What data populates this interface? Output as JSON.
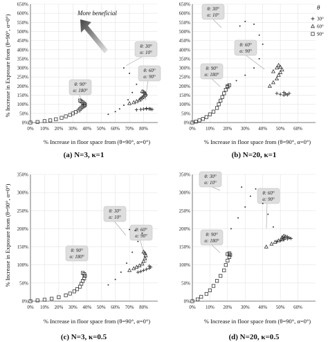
{
  "figure": {
    "x_axis_label": "% Increase in floor space from (θ=90°, α=0°)",
    "y_axis_label": "% Increase in Exposure from (θ=90°, α=0°)",
    "arrow_text": "More beneficial",
    "legend": {
      "title": "θ",
      "entries": [
        {
          "symbol": "plus",
          "label": "30°"
        },
        {
          "symbol": "triangle",
          "label": "60°"
        },
        {
          "symbol": "square",
          "label": "90°"
        }
      ]
    },
    "colors": {
      "marker": "#333333",
      "axis": "#555555",
      "grid": "#e3e3e3",
      "callout_bg": "#dedede"
    }
  },
  "chart_data": [
    {
      "type": "scatter",
      "caption": {
        "letter": "(a)",
        "text": "N=3, κ=1"
      },
      "xlim": [
        0,
        90
      ],
      "ylim": [
        0,
        650
      ],
      "x_ticks": [
        "0%",
        "10%",
        "20%",
        "30%",
        "40%",
        "50%",
        "60%",
        "70%",
        "80%"
      ],
      "y_ticks": [
        "0%",
        "50%",
        "100%",
        "150%",
        "200%",
        "250%",
        "300%",
        "350%",
        "400%",
        "450%",
        "500%",
        "550%",
        "600%",
        "650%"
      ],
      "annotations": [
        {
          "theta": "θ: 30°",
          "alpha": "α: 10°"
        },
        {
          "theta": "θ: 60°",
          "alpha": "α: 90°"
        },
        {
          "theta": "θ: 90°",
          "alpha": "α: 180°"
        }
      ],
      "series": [
        {
          "marker": "square",
          "points": [
            [
              0,
              0
            ],
            [
              5,
              3
            ],
            [
              10,
              8
            ],
            [
              14,
              12
            ],
            [
              18,
              18
            ],
            [
              22,
              26
            ],
            [
              25,
              34
            ],
            [
              28,
              42
            ],
            [
              30,
              50
            ],
            [
              32,
              58
            ],
            [
              34,
              66
            ],
            [
              35,
              74
            ],
            [
              36,
              82
            ],
            [
              37,
              88
            ],
            [
              38,
              92
            ],
            [
              38.5,
              98
            ],
            [
              38,
              104
            ],
            [
              37,
              110
            ],
            [
              36,
              116
            ],
            [
              35,
              121
            ]
          ]
        },
        {
          "marker": "triangle",
          "points": [
            [
              70,
              105
            ],
            [
              73,
              110
            ],
            [
              75,
              116
            ],
            [
              77,
              124
            ],
            [
              78,
              131
            ],
            [
              79,
              137
            ],
            [
              80,
              143
            ],
            [
              81,
              150
            ],
            [
              81.5,
              156
            ],
            [
              81,
              162
            ],
            [
              80,
              168
            ],
            [
              79,
              171
            ]
          ]
        },
        {
          "marker": "plus",
          "points": [
            [
              75,
              70
            ],
            [
              78,
              72
            ],
            [
              80,
              74
            ],
            [
              82,
              75
            ],
            [
              84,
              75
            ],
            [
              85,
              74
            ],
            [
              86,
              72
            ],
            [
              84,
              76
            ],
            [
              82,
              78
            ]
          ]
        },
        {
          "marker": "dot",
          "points": [
            [
              55,
              45
            ],
            [
              60,
              60
            ],
            [
              63,
              75
            ],
            [
              66,
              95
            ],
            [
              69,
              125
            ],
            [
              72,
              165
            ],
            [
              75,
              210
            ],
            [
              70,
              270
            ],
            [
              66,
              300
            ]
          ]
        }
      ]
    },
    {
      "type": "scatter",
      "caption": {
        "letter": "(b)",
        "text": "N=20, κ=1"
      },
      "xlim": [
        0,
        70
      ],
      "ylim": [
        0,
        650
      ],
      "x_ticks": [
        "0%",
        "10%",
        "20%",
        "30%",
        "40%",
        "50%",
        "60%"
      ],
      "y_ticks": [
        "0%",
        "50%",
        "100%",
        "150%",
        "200%",
        "250%",
        "300%",
        "350%",
        "400%",
        "450%",
        "500%",
        "550%",
        "600%",
        "650%"
      ],
      "annotations": [
        {
          "theta": "θ: 30°",
          "alpha": "α: 10°"
        },
        {
          "theta": "θ: 60°",
          "alpha": "α: 90°"
        },
        {
          "theta": "θ: 90°",
          "alpha": "α: 180°"
        }
      ],
      "series": [
        {
          "marker": "square",
          "points": [
            [
              0,
              0
            ],
            [
              2,
              5
            ],
            [
              4,
              12
            ],
            [
              6,
              20
            ],
            [
              8,
              30
            ],
            [
              10,
              45
            ],
            [
              12,
              60
            ],
            [
              14,
              80
            ],
            [
              15,
              100
            ],
            [
              16,
              120
            ],
            [
              17,
              140
            ],
            [
              18,
              160
            ],
            [
              19,
              180
            ],
            [
              20,
              195
            ],
            [
              21,
              205
            ],
            [
              20,
              200
            ]
          ]
        },
        {
          "marker": "triangle",
          "points": [
            [
              44,
              200
            ],
            [
              46,
              220
            ],
            [
              48,
              240
            ],
            [
              49,
              260
            ],
            [
              50,
              275
            ],
            [
              51,
              290
            ],
            [
              50,
              305
            ],
            [
              49,
              315
            ],
            [
              48,
              300
            ],
            [
              46,
              280
            ]
          ]
        },
        {
          "marker": "plus",
          "points": [
            [
              48,
              160
            ],
            [
              50,
              155
            ],
            [
              52,
              150
            ],
            [
              53,
              158
            ],
            [
              54,
              152
            ],
            [
              55,
              160
            ],
            [
              52,
              165
            ]
          ]
        },
        {
          "marker": "dot",
          "points": [
            [
              25,
              230
            ],
            [
              30,
              260
            ],
            [
              35,
              300
            ],
            [
              38,
              350
            ],
            [
              40,
              430
            ],
            [
              38,
              480
            ],
            [
              35,
              540
            ],
            [
              30,
              555
            ],
            [
              27,
              530
            ]
          ]
        }
      ]
    },
    {
      "type": "scatter",
      "caption": {
        "letter": "(c)",
        "text": "N=3, κ=0.5"
      },
      "xlim": [
        0,
        90
      ],
      "ylim": [
        0,
        350
      ],
      "x_ticks": [
        "0%",
        "10%",
        "20%",
        "30%",
        "40%",
        "50%",
        "60%",
        "70%",
        "80%"
      ],
      "y_ticks": [
        "0%",
        "50%",
        "100%",
        "150%",
        "200%",
        "250%",
        "300%",
        "350%"
      ],
      "annotations": [
        {
          "theta": "θ: 30°",
          "alpha": "α: 10°"
        },
        {
          "theta": "θ: 60°",
          "alpha": "α: 90°"
        },
        {
          "theta": "θ: 90°",
          "alpha": "α: 180°"
        }
      ],
      "series": [
        {
          "marker": "square",
          "points": [
            [
              0,
              0
            ],
            [
              5,
              2
            ],
            [
              10,
              4
            ],
            [
              15,
              7
            ],
            [
              20,
              11
            ],
            [
              25,
              16
            ],
            [
              28,
              21
            ],
            [
              31,
              27
            ],
            [
              33,
              33
            ],
            [
              35,
              40
            ],
            [
              36,
              48
            ],
            [
              37,
              56
            ],
            [
              38,
              63
            ],
            [
              38.5,
              70
            ],
            [
              38,
              75
            ],
            [
              37,
              78
            ]
          ]
        },
        {
          "marker": "triangle",
          "points": [
            [
              70,
              85
            ],
            [
              73,
              90
            ],
            [
              75,
              94
            ],
            [
              77,
              98
            ],
            [
              79,
              103
            ],
            [
              80,
              110
            ],
            [
              81,
              118
            ],
            [
              81.5,
              126
            ],
            [
              81,
              132
            ],
            [
              80,
              136
            ]
          ]
        },
        {
          "marker": "plus",
          "points": [
            [
              76,
              80
            ],
            [
              78,
              82
            ],
            [
              80,
              85
            ],
            [
              82,
              88
            ],
            [
              84,
              91
            ],
            [
              85,
              94
            ],
            [
              84,
              97
            ]
          ]
        },
        {
          "marker": "dot",
          "points": [
            [
              55,
              45
            ],
            [
              60,
              60
            ],
            [
              64,
              80
            ],
            [
              68,
              105
            ],
            [
              72,
              135
            ],
            [
              76,
              165
            ],
            [
              79,
              188
            ],
            [
              74,
              195
            ],
            [
              70,
              198
            ]
          ]
        }
      ]
    },
    {
      "type": "scatter",
      "caption": {
        "letter": "(d)",
        "text": "N=20, κ=0.5"
      },
      "xlim": [
        0,
        70
      ],
      "ylim": [
        0,
        350
      ],
      "x_ticks": [
        "0%",
        "10%",
        "20%",
        "30%",
        "40%",
        "50%",
        "60%"
      ],
      "y_ticks": [
        "0%",
        "50%",
        "100%",
        "150%",
        "200%",
        "250%",
        "300%",
        "350%"
      ],
      "annotations": [
        {
          "theta": "θ: 30°",
          "alpha": "α: 10°"
        },
        {
          "theta": "θ: 60°",
          "alpha": "α: 90°"
        },
        {
          "theta": "θ: 90°",
          "alpha": "α: 180°"
        }
      ],
      "series": [
        {
          "marker": "square",
          "points": [
            [
              0,
              0
            ],
            [
              3,
              5
            ],
            [
              5,
              12
            ],
            [
              8,
              20
            ],
            [
              10,
              30
            ],
            [
              12,
              42
            ],
            [
              14,
              56
            ],
            [
              16,
              70
            ],
            [
              18,
              85
            ],
            [
              19,
              100
            ],
            [
              20,
              112
            ],
            [
              21,
              122
            ],
            [
              21.5,
              128
            ],
            [
              21,
              132
            ],
            [
              20,
              130
            ]
          ]
        },
        {
          "marker": "triangle",
          "points": [
            [
              42,
              150
            ],
            [
              45,
              158
            ],
            [
              47,
              163
            ],
            [
              49,
              167
            ],
            [
              51,
              170
            ],
            [
              52,
              174
            ],
            [
              53,
              178
            ],
            [
              52,
              180
            ],
            [
              51,
              176
            ]
          ]
        },
        {
          "marker": "plus",
          "points": [
            [
              48,
              165
            ],
            [
              50,
              168
            ],
            [
              52,
              170
            ],
            [
              54,
              172
            ],
            [
              55,
              175
            ],
            [
              56,
              173
            ],
            [
              54,
              178
            ]
          ]
        },
        {
          "marker": "dot",
          "points": [
            [
              22,
              200
            ],
            [
              26,
              230
            ],
            [
              30,
              260
            ],
            [
              33,
              290
            ],
            [
              36,
              310
            ],
            [
              40,
              270
            ],
            [
              43,
              240
            ],
            [
              46,
              205
            ],
            [
              28,
              315
            ]
          ]
        }
      ]
    }
  ]
}
